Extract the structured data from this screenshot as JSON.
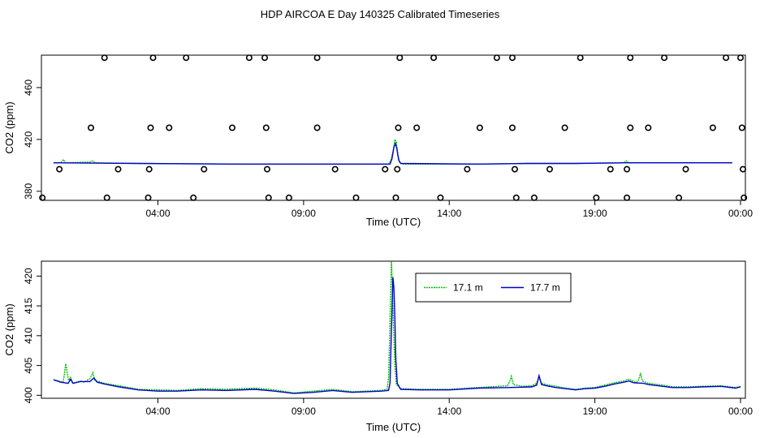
{
  "title": "HDP AIRCOA E  Day 140325  Calibrated Timeseries",
  "colors": {
    "green": "#00c000",
    "blue": "#0000cc",
    "black": "#000000"
  },
  "chart_data": [
    {
      "type": "line",
      "panel": "top",
      "xlabel": "Time (UTC)",
      "ylabel": "CO2 (ppm)",
      "xlim": [
        0,
        1450
      ],
      "ylim": [
        373,
        485
      ],
      "xticks": [
        {
          "value": 240,
          "label": "04:00"
        },
        {
          "value": 540,
          "label": "09:00"
        },
        {
          "value": 840,
          "label": "14:00"
        },
        {
          "value": 1140,
          "label": "19:00"
        },
        {
          "value": 1440,
          "label": "00:00"
        }
      ],
      "yticks": [
        {
          "value": 380,
          "label": "380"
        },
        {
          "value": 420,
          "label": "420"
        },
        {
          "value": 460,
          "label": "460"
        }
      ],
      "series": [
        {
          "color": "green",
          "line": "dashed",
          "points": [
            [
              25,
              402
            ],
            [
              40,
              402
            ],
            [
              45,
              404.5
            ],
            [
              50,
              402
            ],
            [
              100,
              402.5
            ],
            [
              105,
              403.5
            ],
            [
              110,
              402
            ],
            [
              200,
              401.5
            ],
            [
              400,
              401
            ],
            [
              600,
              401
            ],
            [
              715,
              401
            ],
            [
              720,
              404
            ],
            [
              725,
              412
            ],
            [
              728,
              420
            ],
            [
              731,
              418
            ],
            [
              734,
              408
            ],
            [
              738,
              402
            ],
            [
              745,
              401
            ],
            [
              900,
              401
            ],
            [
              1000,
              401.5
            ],
            [
              1100,
              401.5
            ],
            [
              1200,
              402
            ],
            [
              1205,
              403.5
            ],
            [
              1210,
              402
            ],
            [
              1300,
              402
            ],
            [
              1423,
              402
            ]
          ]
        },
        {
          "color": "blue",
          "line": "solid",
          "points": [
            [
              25,
              402
            ],
            [
              200,
              401.5
            ],
            [
              400,
              401
            ],
            [
              600,
              401
            ],
            [
              718,
              401
            ],
            [
              722,
              405
            ],
            [
              726,
              414
            ],
            [
              729,
              417
            ],
            [
              732,
              413
            ],
            [
              736,
              404
            ],
            [
              740,
              401.5
            ],
            [
              900,
              401
            ],
            [
              1000,
              401.5
            ],
            [
              1100,
              401.5
            ],
            [
              1200,
              402
            ],
            [
              1300,
              402
            ],
            [
              1423,
              402
            ]
          ]
        }
      ],
      "markers": [
        [
          130,
          483
        ],
        [
          230,
          483
        ],
        [
          298,
          483
        ],
        [
          428,
          483
        ],
        [
          460,
          483
        ],
        [
          568,
          483
        ],
        [
          738,
          483
        ],
        [
          808,
          483
        ],
        [
          938,
          483
        ],
        [
          970,
          483
        ],
        [
          1110,
          483
        ],
        [
          1213,
          483
        ],
        [
          1283,
          483
        ],
        [
          1410,
          483
        ],
        [
          1440,
          483
        ],
        [
          102,
          429
        ],
        [
          225,
          429
        ],
        [
          263,
          429
        ],
        [
          393,
          429
        ],
        [
          463,
          429
        ],
        [
          568,
          429
        ],
        [
          735,
          429
        ],
        [
          773,
          429
        ],
        [
          903,
          429
        ],
        [
          970,
          429
        ],
        [
          1078,
          429
        ],
        [
          1213,
          429
        ],
        [
          1250,
          429
        ],
        [
          1383,
          429
        ],
        [
          1443,
          429
        ],
        [
          37,
          397
        ],
        [
          158,
          397
        ],
        [
          222,
          397
        ],
        [
          335,
          397
        ],
        [
          465,
          397
        ],
        [
          605,
          397
        ],
        [
          708,
          397
        ],
        [
          733,
          397
        ],
        [
          877,
          397
        ],
        [
          975,
          397
        ],
        [
          1047,
          397
        ],
        [
          1172,
          397
        ],
        [
          1206,
          397
        ],
        [
          1327,
          397
        ],
        [
          1445,
          397
        ],
        [
          2,
          375
        ],
        [
          135,
          375
        ],
        [
          220,
          375
        ],
        [
          313,
          375
        ],
        [
          468,
          375
        ],
        [
          510,
          375
        ],
        [
          648,
          375
        ],
        [
          730,
          375
        ],
        [
          822,
          375
        ],
        [
          978,
          375
        ],
        [
          1015,
          375
        ],
        [
          1143,
          375
        ],
        [
          1206,
          375
        ],
        [
          1313,
          375
        ],
        [
          1447,
          375
        ]
      ]
    },
    {
      "type": "line",
      "panel": "bottom",
      "xlabel": "Time (UTC)",
      "ylabel": "CO2 (ppm)",
      "xlim": [
        0,
        1450
      ],
      "ylim": [
        399.5,
        422.5
      ],
      "xticks": [
        {
          "value": 240,
          "label": "04:00"
        },
        {
          "value": 540,
          "label": "09:00"
        },
        {
          "value": 840,
          "label": "14:00"
        },
        {
          "value": 1140,
          "label": "19:00"
        },
        {
          "value": 1440,
          "label": "00:00"
        }
      ],
      "yticks": [
        {
          "value": 400,
          "label": "400"
        },
        {
          "value": 405,
          "label": "405"
        },
        {
          "value": 410,
          "label": "410"
        },
        {
          "value": 415,
          "label": "415"
        },
        {
          "value": 420,
          "label": "420"
        }
      ],
      "legend": {
        "placement": "top-right",
        "entries": [
          {
            "label": "17.1 m",
            "color": "green",
            "line": "dashed"
          },
          {
            "label": "17.7 m",
            "color": "blue",
            "line": "solid"
          }
        ]
      },
      "series": [
        {
          "name": "17.1 m",
          "color": "green",
          "line": "dashed",
          "points": [
            [
              25,
              402.6
            ],
            [
              35,
              402.4
            ],
            [
              45,
              402.2
            ],
            [
              48,
              404
            ],
            [
              50,
              405.3
            ],
            [
              53,
              403.8
            ],
            [
              56,
              402.5
            ],
            [
              60,
              403
            ],
            [
              65,
              402
            ],
            [
              80,
              402.4
            ],
            [
              88,
              402.2
            ],
            [
              100,
              402.8
            ],
            [
              106,
              403.8
            ],
            [
              110,
              402.5
            ],
            [
              130,
              402
            ],
            [
              160,
              401.6
            ],
            [
              200,
              401
            ],
            [
              240,
              400.9
            ],
            [
              280,
              400.8
            ],
            [
              330,
              401.1
            ],
            [
              380,
              401
            ],
            [
              440,
              401.2
            ],
            [
              480,
              400.9
            ],
            [
              520,
              400.4
            ],
            [
              560,
              400.7
            ],
            [
              600,
              401
            ],
            [
              640,
              400.6
            ],
            [
              700,
              400.8
            ],
            [
              712,
              401
            ],
            [
              715,
              403
            ],
            [
              717,
              409
            ],
            [
              719,
              416
            ],
            [
              721,
              422.5
            ],
            [
              723,
              418
            ],
            [
              725,
              412
            ],
            [
              728,
              405
            ],
            [
              731,
              401.8
            ],
            [
              740,
              401.1
            ],
            [
              780,
              401
            ],
            [
              840,
              401
            ],
            [
              900,
              401.3
            ],
            [
              960,
              401.6
            ],
            [
              965,
              402.4
            ],
            [
              968,
              403.2
            ],
            [
              972,
              401.8
            ],
            [
              990,
              401.5
            ],
            [
              1010,
              401.6
            ],
            [
              1020,
              402
            ],
            [
              1025,
              403
            ],
            [
              1030,
              402
            ],
            [
              1040,
              401.8
            ],
            [
              1060,
              401.5
            ],
            [
              1080,
              401.2
            ],
            [
              1100,
              401
            ],
            [
              1120,
              401.2
            ],
            [
              1140,
              401.3
            ],
            [
              1160,
              401.7
            ],
            [
              1180,
              402.1
            ],
            [
              1200,
              402.4
            ],
            [
              1210,
              402.7
            ],
            [
              1218,
              402.4
            ],
            [
              1225,
              402.1
            ],
            [
              1230,
              402.6
            ],
            [
              1234,
              403.6
            ],
            [
              1238,
              402.4
            ],
            [
              1250,
              402
            ],
            [
              1280,
              401.7
            ],
            [
              1300,
              401.4
            ],
            [
              1330,
              401.4
            ],
            [
              1360,
              401.5
            ],
            [
              1400,
              401.6
            ],
            [
              1430,
              401.3
            ],
            [
              1440,
              401.5
            ]
          ]
        },
        {
          "name": "17.7 m",
          "color": "blue",
          "line": "solid",
          "points": [
            [
              25,
              402.6
            ],
            [
              40,
              402.2
            ],
            [
              55,
              402
            ],
            [
              60,
              402.7
            ],
            [
              65,
              402
            ],
            [
              80,
              402.3
            ],
            [
              100,
              402.3
            ],
            [
              108,
              402.9
            ],
            [
              115,
              402.2
            ],
            [
              130,
              401.9
            ],
            [
              160,
              401.4
            ],
            [
              200,
              400.9
            ],
            [
              240,
              400.7
            ],
            [
              280,
              400.7
            ],
            [
              330,
              400.9
            ],
            [
              380,
              400.8
            ],
            [
              440,
              401
            ],
            [
              480,
              400.7
            ],
            [
              520,
              400.3
            ],
            [
              560,
              400.5
            ],
            [
              600,
              400.8
            ],
            [
              640,
              400.5
            ],
            [
              700,
              400.7
            ],
            [
              715,
              400.8
            ],
            [
              718,
              402
            ],
            [
              720,
              408
            ],
            [
              722,
              414
            ],
            [
              724,
              419.8
            ],
            [
              726,
              418
            ],
            [
              728,
              413
            ],
            [
              730,
              406
            ],
            [
              733,
              402
            ],
            [
              740,
              401
            ],
            [
              780,
              400.9
            ],
            [
              840,
              400.9
            ],
            [
              900,
              401.2
            ],
            [
              960,
              401.3
            ],
            [
              1010,
              401.4
            ],
            [
              1020,
              401.7
            ],
            [
              1025,
              403.3
            ],
            [
              1030,
              401.8
            ],
            [
              1040,
              401.6
            ],
            [
              1060,
              401.3
            ],
            [
              1080,
              401.1
            ],
            [
              1100,
              400.9
            ],
            [
              1120,
              401.1
            ],
            [
              1140,
              401.2
            ],
            [
              1160,
              401.5
            ],
            [
              1180,
              401.9
            ],
            [
              1200,
              402.2
            ],
            [
              1210,
              402.4
            ],
            [
              1220,
              402.1
            ],
            [
              1240,
              402
            ],
            [
              1250,
              401.8
            ],
            [
              1280,
              401.5
            ],
            [
              1300,
              401.3
            ],
            [
              1330,
              401.3
            ],
            [
              1360,
              401.4
            ],
            [
              1400,
              401.5
            ],
            [
              1430,
              401.2
            ],
            [
              1440,
              401.4
            ]
          ]
        }
      ]
    }
  ]
}
